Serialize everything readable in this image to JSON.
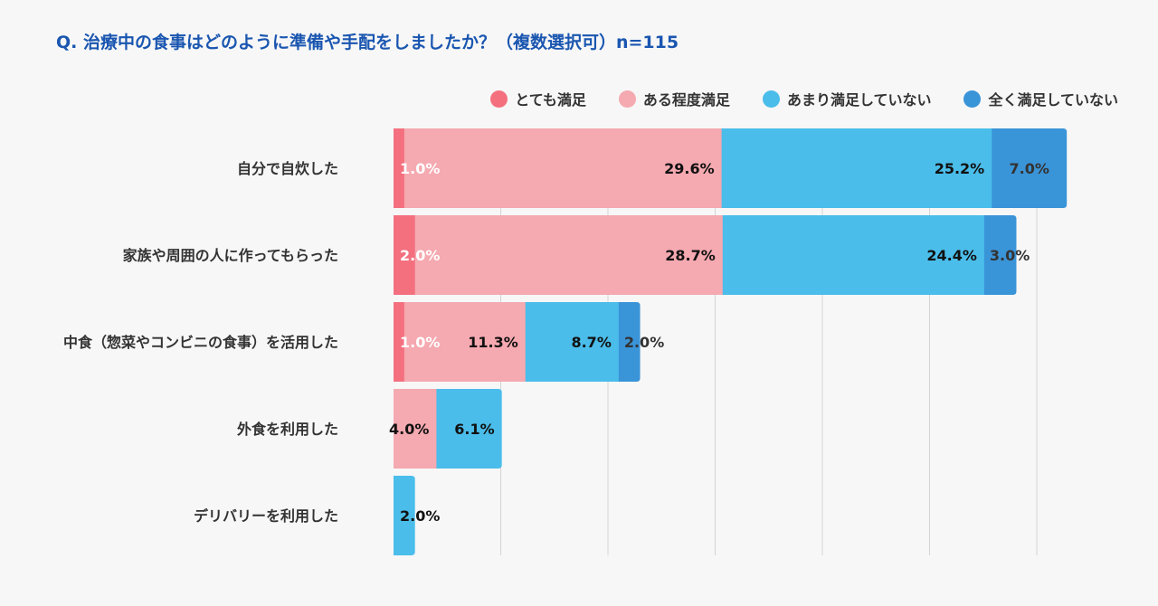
{
  "title": "Q. 治療中の食事はどのように準備や手配をしましたか？（複数選択可）n=115",
  "chart_data": {
    "type": "bar",
    "orientation": "horizontal",
    "stacked": true,
    "categories": [
      "自分で自炊した",
      "家族や周囲の人に作ってもらった",
      "中食（惣菜やコンビニの食事）を活用した",
      "外食を利用した",
      "デリバリーを利用した"
    ],
    "series": [
      {
        "name": "とても満足",
        "color": "#f4707f",
        "values": [
          1.0,
          2.0,
          1.0,
          0,
          0
        ],
        "labels": [
          "1.0%",
          "2.0%",
          "1.0%",
          "",
          ""
        ],
        "label_color": "#ffffff"
      },
      {
        "name": "ある程度満足",
        "color": "#f5a9b0",
        "values": [
          29.6,
          28.7,
          11.3,
          4.0,
          0
        ],
        "labels": [
          "29.6%",
          "28.7%",
          "11.3%",
          "4.0%",
          ""
        ],
        "label_color": "#111111"
      },
      {
        "name": "あまり満足していない",
        "color": "#4abdea",
        "values": [
          25.2,
          24.4,
          8.7,
          6.1,
          2.0
        ],
        "labels": [
          "25.2%",
          "24.4%",
          "8.7%",
          "6.1%",
          "2.0%"
        ],
        "label_color": "#111111"
      },
      {
        "name": "全く満足していない",
        "color": "#3a94d8",
        "values": [
          7.0,
          3.0,
          2.0,
          0,
          0
        ],
        "labels": [
          "7.0%",
          "3.0%",
          "2.0%",
          "",
          ""
        ],
        "label_color": "#333333"
      }
    ],
    "legend_position": "top-right",
    "grid": true
  }
}
